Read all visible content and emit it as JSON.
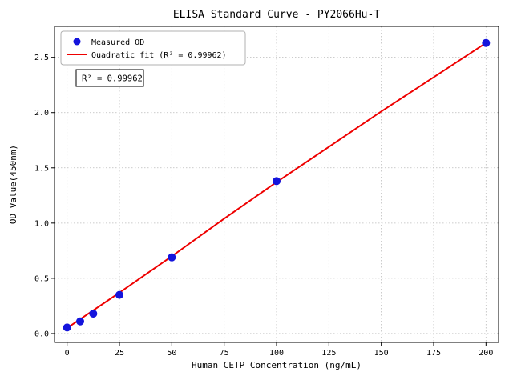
{
  "figure": {
    "background": "#ffffff"
  },
  "chart_data": {
    "type": "scatter",
    "title": "ELISA Standard Curve - PY2066Hu-T",
    "xlabel": "Human CETP Concentration (ng/mL)",
    "ylabel": "OD Value(450nm)",
    "xlim": [
      -6,
      206
    ],
    "ylim": [
      -0.08,
      2.78
    ],
    "grid": true,
    "x_ticks": [
      0,
      25,
      50,
      75,
      100,
      125,
      150,
      175,
      200
    ],
    "x_tick_labels": [
      "0",
      "25",
      "50",
      "75",
      "100",
      "125",
      "150",
      "175",
      "200"
    ],
    "y_ticks": [
      0.0,
      0.5,
      1.0,
      1.5,
      2.0,
      2.5
    ],
    "y_tick_labels": [
      "0.0",
      "0.5",
      "1.0",
      "1.5",
      "2.0",
      "2.5"
    ],
    "legend_position": "upper left",
    "annotation": "R² = 0.99962",
    "colors": {
      "measured": "#1414dc",
      "fit": "#ee0000",
      "grid": "#bbbbbb",
      "legend_border": "#b0b0b0",
      "axis": "#000000"
    },
    "series": [
      {
        "name": "Measured OD",
        "kind": "scatter",
        "color": "#1414dc",
        "x": [
          0,
          6.25,
          12.5,
          25,
          50,
          100,
          200
        ],
        "y": [
          0.055,
          0.11,
          0.18,
          0.35,
          0.69,
          1.38,
          2.63
        ]
      },
      {
        "name": "Quadratic fit (R² = 0.99962)",
        "kind": "line",
        "color": "#ee0000",
        "x": [
          0,
          25,
          50,
          75,
          100,
          125,
          150,
          175,
          200
        ],
        "y": [
          0.05,
          0.37,
          0.7,
          1.04,
          1.37,
          1.69,
          2.01,
          2.32,
          2.63
        ]
      }
    ]
  }
}
